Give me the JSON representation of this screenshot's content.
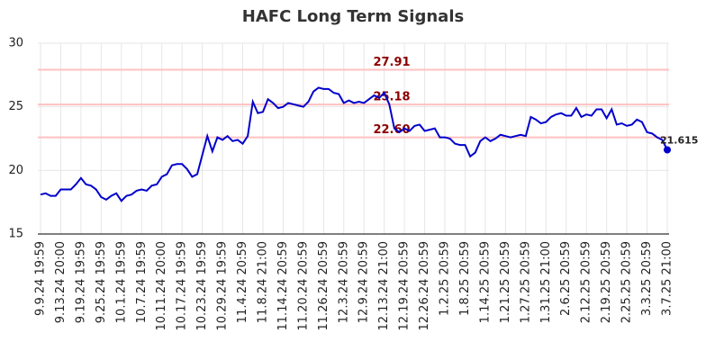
{
  "chart_data": {
    "type": "line",
    "title": "HAFC Long Term Signals",
    "categories": [
      "9.9.24 19:59",
      null,
      null,
      null,
      "9.13.24 20:00",
      null,
      null,
      null,
      "9.19.24 19:59",
      null,
      null,
      null,
      "9.25.24 19:59",
      null,
      null,
      null,
      "10.1.24 19:59",
      null,
      null,
      null,
      "10.7.24 19:59",
      null,
      null,
      null,
      "10.11.24 20:00",
      null,
      null,
      null,
      "10.17.24 19:59",
      null,
      null,
      null,
      "10.23.24 19:59",
      null,
      null,
      null,
      "10.29.24 19:59",
      null,
      null,
      null,
      "11.4.24 20:59",
      null,
      null,
      null,
      "11.8.24 21:00",
      null,
      null,
      null,
      "11.14.24 20:59",
      null,
      null,
      null,
      "11.20.24 20:59",
      null,
      null,
      null,
      "11.26.24 20:59",
      null,
      null,
      null,
      "12.3.24 20:59",
      null,
      null,
      null,
      "12.9.24 20:59",
      null,
      null,
      null,
      "12.13.24 21:00",
      null,
      null,
      null,
      "12.19.24 20:59",
      null,
      null,
      null,
      "12.26.24 20:59",
      null,
      null,
      null,
      "1.2.25 20:59",
      null,
      null,
      null,
      "1.8.25 20:59",
      null,
      null,
      null,
      "1.14.25 20:59",
      null,
      null,
      null,
      "1.21.25 20:59",
      null,
      null,
      null,
      "1.27.25 20:59",
      null,
      null,
      null,
      "1.31.25 21:00",
      null,
      null,
      null,
      "2.6.25 20:59",
      null,
      null,
      null,
      "2.12.25 20:59",
      null,
      null,
      null,
      "2.19.25 20:59",
      null,
      null,
      null,
      "2.25.25 20:59",
      null,
      null,
      null,
      "3.3.25 20:59",
      null,
      null,
      null,
      "3.7.25 21:00"
    ],
    "series": [
      {
        "name": "HAFC",
        "color": "#0000cc",
        "values": [
          18.1,
          18.2,
          18.0,
          18.0,
          18.5,
          18.5,
          18.5,
          18.9,
          19.4,
          18.9,
          18.8,
          18.5,
          17.9,
          17.7,
          18.0,
          18.2,
          17.6,
          18.0,
          18.1,
          18.4,
          18.5,
          18.4,
          18.8,
          18.9,
          19.5,
          19.7,
          20.4,
          20.5,
          20.5,
          20.1,
          19.5,
          19.7,
          21.2,
          22.7,
          21.5,
          22.6,
          22.4,
          22.7,
          22.3,
          22.4,
          22.1,
          22.7,
          25.4,
          24.5,
          24.6,
          25.6,
          25.3,
          24.9,
          25.0,
          25.3,
          25.2,
          25.1,
          25.0,
          25.4,
          26.2,
          26.5,
          26.4,
          26.4,
          26.1,
          26.0,
          25.3,
          25.5,
          25.3,
          25.4,
          25.3,
          25.6,
          25.9,
          25.7,
          26.1,
          25.2,
          23.3,
          23.0,
          23.3,
          23.1,
          23.5,
          23.6,
          23.1,
          23.2,
          23.3,
          22.6,
          22.6,
          22.5,
          22.1,
          22.0,
          22.0,
          21.1,
          21.4,
          22.3,
          22.6,
          22.3,
          22.5,
          22.8,
          22.7,
          22.6,
          22.7,
          22.8,
          22.7,
          24.2,
          24.0,
          23.7,
          23.8,
          24.2,
          24.4,
          24.5,
          24.3,
          24.3,
          24.9,
          24.2,
          24.4,
          24.3,
          24.8,
          24.8,
          24.1,
          24.8,
          23.6,
          23.7,
          23.5,
          23.6,
          24.0,
          23.8,
          23.0,
          22.9,
          22.6,
          22.4,
          21.615
        ]
      }
    ],
    "hlines": [
      {
        "value": 27.91,
        "label": "27.91"
      },
      {
        "value": 25.18,
        "label": "25.18"
      },
      {
        "value": 22.6,
        "label": "22.60"
      }
    ],
    "hline_color": "#ffc0c0",
    "hline_label_color": "#8b0000",
    "ylim": [
      15,
      30
    ],
    "yticks": [
      15,
      20,
      25,
      30
    ],
    "grid": true
  }
}
